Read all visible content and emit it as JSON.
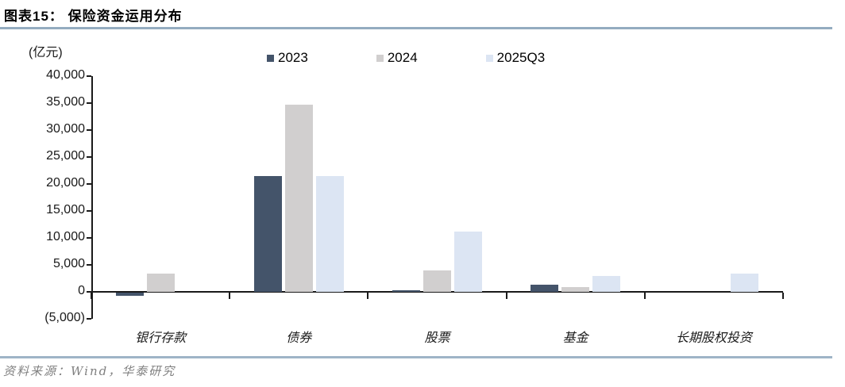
{
  "header": {
    "title": "图表15： 保险资金运用分布"
  },
  "chart_data": {
    "type": "bar",
    "title": "保险资金运用分布",
    "unit_label": "(亿元)",
    "categories": [
      "银行存款",
      "债券",
      "股票",
      "基金",
      "长期股权投资"
    ],
    "series": [
      {
        "name": "2023",
        "color": "#44546A",
        "values": [
          -600,
          21500,
          350,
          1300,
          0
        ]
      },
      {
        "name": "2024",
        "color": "#D1CFCF",
        "values": [
          3400,
          34700,
          4000,
          950,
          0
        ]
      },
      {
        "name": "2025Q3",
        "color": "#DCE5F3",
        "values": [
          0,
          21400,
          11200,
          2900,
          3400
        ]
      }
    ],
    "ylim": [
      -5000,
      40000
    ],
    "ytick_step": 5000,
    "yticks": [
      "40,000",
      "35,000",
      "30,000",
      "25,000",
      "20,000",
      "15,000",
      "10,000",
      "5,000",
      "0",
      "(5,000)"
    ],
    "grid": false,
    "legend_position": "top"
  },
  "footer": {
    "source": "资料来源：Wind，华泰研究"
  },
  "colors": {
    "header_rule": "#94ACC0",
    "footer_rule": "#9FB4C7",
    "axis": "#1A1A1A",
    "source_text": "#808080"
  }
}
